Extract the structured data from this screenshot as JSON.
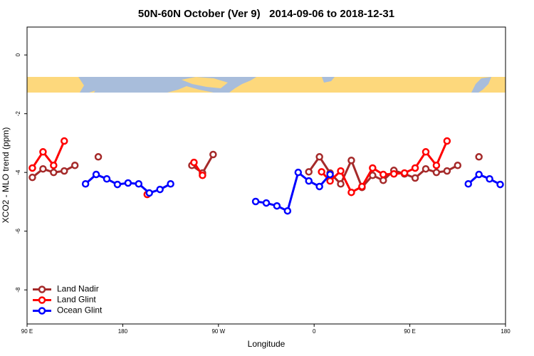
{
  "chart_data": {
    "type": "line",
    "title": "50N-60N October (Ver 9)   2014-09-06 to 2018-12-31",
    "x_label": "Longitude",
    "y_label": "XCO2 - MLO trend (ppm)",
    "xlim": [
      90,
      540
    ],
    "ylim": [
      -9.16,
      0.95
    ],
    "xticks": [
      {
        "value": 90,
        "label": "90 E"
      },
      180,
      {
        "value": 270,
        "label": "90 W"
      },
      {
        "value": 360,
        "label": "0"
      },
      {
        "value": 450,
        "label": "90 E"
      },
      {
        "value": 540,
        "label": "180"
      }
    ],
    "yticks": [
      0,
      -2,
      -4,
      -6,
      -8
    ],
    "grid": false,
    "legend": "bottomleft",
    "series": [
      {
        "name": "Land Nadir",
        "color": "#a52a2a",
        "x": [
          95,
          105,
          115,
          125,
          135,
          null,
          157,
          null,
          245,
          255,
          265,
          null,
          355,
          365,
          375,
          385,
          395,
          405,
          415,
          425,
          435,
          445,
          455,
          465,
          475,
          485,
          495,
          null,
          515
        ],
        "values": [
          -4.17,
          -3.88,
          -4.0,
          -3.95,
          -3.76,
          null,
          -3.47,
          null,
          -3.76,
          -4.02,
          -3.39,
          null,
          -3.98,
          -3.47,
          -4.02,
          -4.39,
          -3.59,
          -4.51,
          -4.1,
          -4.27,
          -3.93,
          -4.05,
          -4.19,
          -3.88,
          -4.0,
          -3.95,
          -3.76,
          null,
          -3.47
        ]
      },
      {
        "name": "Land Glint",
        "color": "#ff0000",
        "x": [
          95,
          105,
          115,
          125,
          null,
          203,
          null,
          247,
          255,
          null,
          367,
          375,
          385,
          395,
          405,
          415,
          425,
          435,
          445,
          455,
          465,
          475,
          485
        ],
        "values": [
          -3.85,
          -3.3,
          -3.76,
          -2.93,
          null,
          -4.75,
          null,
          -3.66,
          -4.1,
          null,
          -3.98,
          -4.29,
          -3.95,
          -4.68,
          -4.48,
          -3.85,
          -4.07,
          -4.05,
          -4.02,
          -3.85,
          -3.3,
          -3.76,
          -2.93
        ]
      },
      {
        "name": "Ocean Glint",
        "color": "#0000ff",
        "x": [
          145,
          155,
          165,
          175,
          185,
          195,
          205,
          215,
          225,
          null,
          305,
          315,
          325,
          335,
          345,
          355,
          365,
          375,
          null,
          505,
          515,
          525,
          535
        ],
        "values": [
          -4.39,
          -4.07,
          -4.22,
          -4.41,
          -4.36,
          -4.39,
          -4.7,
          -4.58,
          -4.39,
          null,
          -4.99,
          -5.04,
          -5.14,
          -5.31,
          -4.0,
          -4.29,
          -4.48,
          -4.07,
          null,
          -4.39,
          -4.07,
          -4.22,
          -4.41
        ]
      }
    ]
  }
}
